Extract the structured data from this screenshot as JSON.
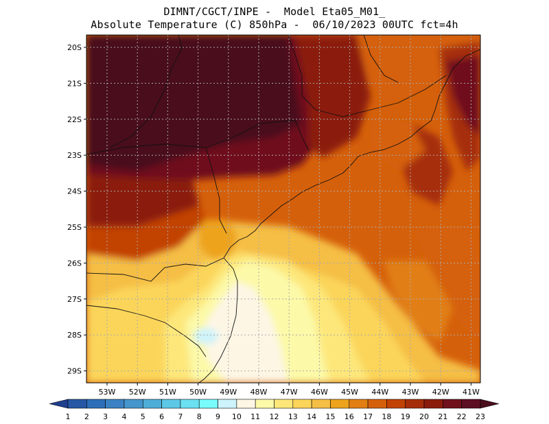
{
  "title": {
    "line1": "DIMNT/CGCT/INPE -  Model Eta05_M01_",
    "line2": "Absolute Temperature (C) 850hPa -  06/10/2023 00UTC fct=4h"
  },
  "map": {
    "lat_labels": [
      "20S",
      "21S",
      "22S",
      "23S",
      "24S",
      "25S",
      "26S",
      "27S",
      "28S",
      "29S"
    ],
    "lon_labels": [
      "53W",
      "52W",
      "51W",
      "50W",
      "49W",
      "48W",
      "47W",
      "46W",
      "45W",
      "44W",
      "43W",
      "42W",
      "41W"
    ]
  },
  "colorbar": {
    "labels": [
      "1",
      "2",
      "3",
      "4",
      "5",
      "6",
      "7",
      "8",
      "9",
      "10",
      "11",
      "12",
      "13",
      "14",
      "15",
      "16",
      "17",
      "18",
      "19",
      "20",
      "21",
      "22",
      "23"
    ],
    "colors": [
      "#1f3f8f",
      "#2557a5",
      "#2c6eb8",
      "#3a82c4",
      "#4596cc",
      "#4faed8",
      "#5cc8e6",
      "#6ae0f2",
      "#78fcfc",
      "#cdf3fb",
      "#fdf6e5",
      "#fcf9a8",
      "#fde77a",
      "#fbd55a",
      "#f5be45",
      "#eda31b",
      "#e17f12",
      "#d5600b",
      "#c24204",
      "#a62d0a",
      "#8b1c0c",
      "#70101c",
      "#5e0e22",
      "#4a0d1c"
    ]
  }
}
